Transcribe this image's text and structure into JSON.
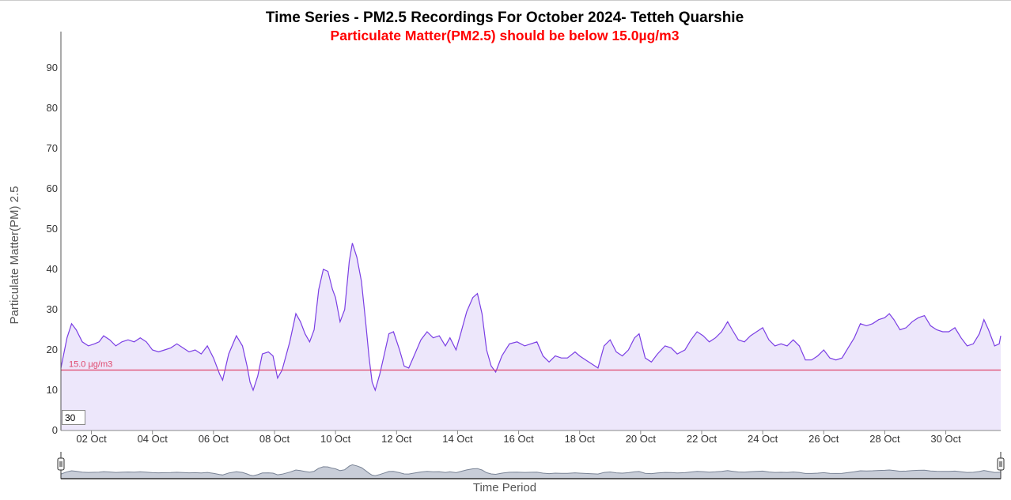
{
  "chart_data": {
    "type": "area",
    "title": "Time Series - PM2.5 Recordings For October 2024- Tetteh Quarshie",
    "subtitle": "Particulate Matter(PM2.5) should be below 15.0µg/m3",
    "ylabel": "Particulate Matter(PM) 2.5",
    "xlabel": "Time Period",
    "ylim": [
      0,
      99
    ],
    "xlim": [
      1.0,
      31.8
    ],
    "yticks": [
      "0",
      "10",
      "20",
      "30",
      "40",
      "50",
      "60",
      "70",
      "80",
      "90"
    ],
    "xticks": [
      {
        "x": 2,
        "label": "02 Oct"
      },
      {
        "x": 4,
        "label": "04 Oct"
      },
      {
        "x": 6,
        "label": "06 Oct"
      },
      {
        "x": 8,
        "label": "08 Oct"
      },
      {
        "x": 10,
        "label": "10 Oct"
      },
      {
        "x": 12,
        "label": "12 Oct"
      },
      {
        "x": 14,
        "label": "14 Oct"
      },
      {
        "x": 16,
        "label": "16 Oct"
      },
      {
        "x": 18,
        "label": "18 Oct"
      },
      {
        "x": 20,
        "label": "20 Oct"
      },
      {
        "x": 22,
        "label": "22 Oct"
      },
      {
        "x": 24,
        "label": "24 Oct"
      },
      {
        "x": 26,
        "label": "26 Oct"
      },
      {
        "x": 28,
        "label": "28 Oct"
      },
      {
        "x": 30,
        "label": "30 Oct"
      }
    ],
    "grid": false,
    "threshold": {
      "value": 15.0,
      "label": "15.0 µg/m3"
    },
    "rolling_window_input": "30",
    "series": [
      {
        "points": [
          [
            1.0,
            15.5
          ],
          [
            1.2,
            23.0
          ],
          [
            1.35,
            26.5
          ],
          [
            1.5,
            25.0
          ],
          [
            1.7,
            22.0
          ],
          [
            1.9,
            21.0
          ],
          [
            2.1,
            21.5
          ],
          [
            2.25,
            22.0
          ],
          [
            2.4,
            23.5
          ],
          [
            2.6,
            22.5
          ],
          [
            2.8,
            21.0
          ],
          [
            3.0,
            22.0
          ],
          [
            3.2,
            22.5
          ],
          [
            3.4,
            22.0
          ],
          [
            3.6,
            23.0
          ],
          [
            3.8,
            22.0
          ],
          [
            4.0,
            20.0
          ],
          [
            4.2,
            19.5
          ],
          [
            4.4,
            20.0
          ],
          [
            4.6,
            20.5
          ],
          [
            4.8,
            21.5
          ],
          [
            5.0,
            20.5
          ],
          [
            5.2,
            19.5
          ],
          [
            5.4,
            20.0
          ],
          [
            5.6,
            19.0
          ],
          [
            5.8,
            21.0
          ],
          [
            6.0,
            18.0
          ],
          [
            6.2,
            14.0
          ],
          [
            6.3,
            12.5
          ],
          [
            6.5,
            19.0
          ],
          [
            6.75,
            23.5
          ],
          [
            6.95,
            21.0
          ],
          [
            7.1,
            16.0
          ],
          [
            7.2,
            12.0
          ],
          [
            7.3,
            10.0
          ],
          [
            7.45,
            13.5
          ],
          [
            7.6,
            19.0
          ],
          [
            7.8,
            19.5
          ],
          [
            7.95,
            18.5
          ],
          [
            8.1,
            13.0
          ],
          [
            8.25,
            15.0
          ],
          [
            8.5,
            22.0
          ],
          [
            8.7,
            29.0
          ],
          [
            8.85,
            27.0
          ],
          [
            9.0,
            24.0
          ],
          [
            9.15,
            22.0
          ],
          [
            9.3,
            25.0
          ],
          [
            9.45,
            35.0
          ],
          [
            9.6,
            40.0
          ],
          [
            9.75,
            39.5
          ],
          [
            9.9,
            35.0
          ],
          [
            10.0,
            33.0
          ],
          [
            10.15,
            27.0
          ],
          [
            10.3,
            30.0
          ],
          [
            10.45,
            42.0
          ],
          [
            10.55,
            46.5
          ],
          [
            10.7,
            43.0
          ],
          [
            10.85,
            37.0
          ],
          [
            11.0,
            26.0
          ],
          [
            11.1,
            18.0
          ],
          [
            11.2,
            12.0
          ],
          [
            11.3,
            10.0
          ],
          [
            11.45,
            14.0
          ],
          [
            11.6,
            19.0
          ],
          [
            11.75,
            24.0
          ],
          [
            11.9,
            24.5
          ],
          [
            12.1,
            20.0
          ],
          [
            12.25,
            16.0
          ],
          [
            12.4,
            15.5
          ],
          [
            12.6,
            19.0
          ],
          [
            12.8,
            22.5
          ],
          [
            13.0,
            24.5
          ],
          [
            13.2,
            23.0
          ],
          [
            13.4,
            23.5
          ],
          [
            13.6,
            21.0
          ],
          [
            13.75,
            23.0
          ],
          [
            13.95,
            20.0
          ],
          [
            14.1,
            24.0
          ],
          [
            14.3,
            29.5
          ],
          [
            14.5,
            33.0
          ],
          [
            14.65,
            34.0
          ],
          [
            14.8,
            29.0
          ],
          [
            14.95,
            20.0
          ],
          [
            15.1,
            16.0
          ],
          [
            15.25,
            14.5
          ],
          [
            15.45,
            18.5
          ],
          [
            15.7,
            21.5
          ],
          [
            15.95,
            22.0
          ],
          [
            16.2,
            21.0
          ],
          [
            16.4,
            21.5
          ],
          [
            16.6,
            22.0
          ],
          [
            16.8,
            18.5
          ],
          [
            17.0,
            17.0
          ],
          [
            17.2,
            18.5
          ],
          [
            17.4,
            18.0
          ],
          [
            17.6,
            18.0
          ],
          [
            17.85,
            19.5
          ],
          [
            18.0,
            18.5
          ],
          [
            18.2,
            17.5
          ],
          [
            18.4,
            16.5
          ],
          [
            18.6,
            15.5
          ],
          [
            18.8,
            21.0
          ],
          [
            19.0,
            22.5
          ],
          [
            19.2,
            19.5
          ],
          [
            19.4,
            18.5
          ],
          [
            19.6,
            20.0
          ],
          [
            19.8,
            23.0
          ],
          [
            19.95,
            24.0
          ],
          [
            20.15,
            18.0
          ],
          [
            20.35,
            17.0
          ],
          [
            20.55,
            19.0
          ],
          [
            20.8,
            21.0
          ],
          [
            21.0,
            20.5
          ],
          [
            21.2,
            19.0
          ],
          [
            21.45,
            20.0
          ],
          [
            21.65,
            22.5
          ],
          [
            21.85,
            24.5
          ],
          [
            22.05,
            23.5
          ],
          [
            22.25,
            22.0
          ],
          [
            22.45,
            23.0
          ],
          [
            22.65,
            24.5
          ],
          [
            22.85,
            27.0
          ],
          [
            23.0,
            25.0
          ],
          [
            23.2,
            22.5
          ],
          [
            23.4,
            22.0
          ],
          [
            23.6,
            23.5
          ],
          [
            23.8,
            24.5
          ],
          [
            24.0,
            25.5
          ],
          [
            24.2,
            22.5
          ],
          [
            24.4,
            21.0
          ],
          [
            24.6,
            21.5
          ],
          [
            24.8,
            21.0
          ],
          [
            25.0,
            22.5
          ],
          [
            25.2,
            21.0
          ],
          [
            25.4,
            17.5
          ],
          [
            25.6,
            17.5
          ],
          [
            25.8,
            18.5
          ],
          [
            26.0,
            20.0
          ],
          [
            26.2,
            18.0
          ],
          [
            26.4,
            17.5
          ],
          [
            26.6,
            18.0
          ],
          [
            26.8,
            20.5
          ],
          [
            27.0,
            23.0
          ],
          [
            27.2,
            26.5
          ],
          [
            27.4,
            26.0
          ],
          [
            27.6,
            26.5
          ],
          [
            27.8,
            27.5
          ],
          [
            28.0,
            28.0
          ],
          [
            28.15,
            29.0
          ],
          [
            28.3,
            27.5
          ],
          [
            28.5,
            25.0
          ],
          [
            28.7,
            25.5
          ],
          [
            28.9,
            27.0
          ],
          [
            29.1,
            28.0
          ],
          [
            29.3,
            28.5
          ],
          [
            29.5,
            26.0
          ],
          [
            29.7,
            25.0
          ],
          [
            29.9,
            24.5
          ],
          [
            30.1,
            24.5
          ],
          [
            30.3,
            25.5
          ],
          [
            30.5,
            23.0
          ],
          [
            30.7,
            21.0
          ],
          [
            30.9,
            21.5
          ],
          [
            31.1,
            24.0
          ],
          [
            31.25,
            27.5
          ],
          [
            31.4,
            25.0
          ],
          [
            31.6,
            21.0
          ],
          [
            31.75,
            21.5
          ],
          [
            31.8,
            23.5
          ]
        ]
      }
    ],
    "colors": {
      "line": "#7b3fe4",
      "area": "#ede7fb",
      "threshold": "#e0456a",
      "subtitle": "#ff0000",
      "navigator_fill": "#c8cdd8",
      "navigator_line": "#7a8496"
    }
  }
}
